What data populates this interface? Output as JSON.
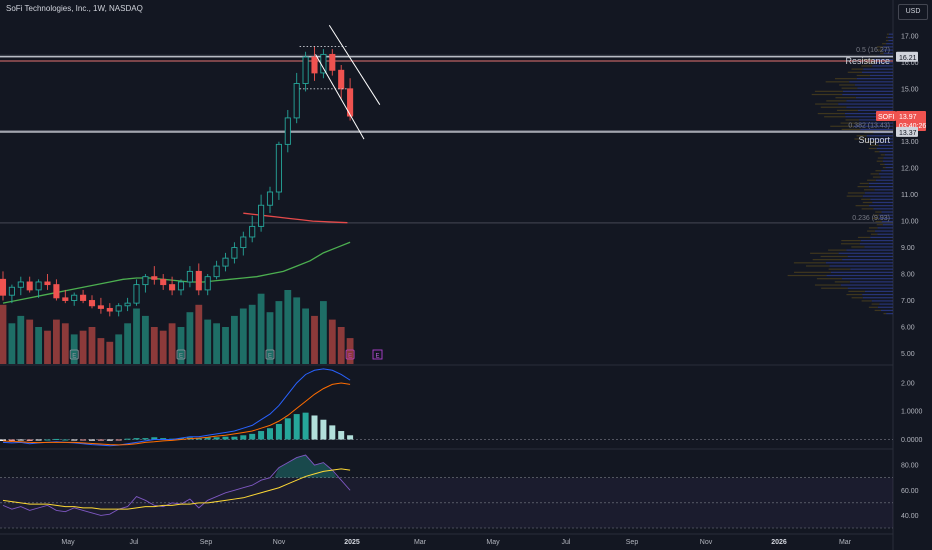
{
  "header": {
    "title": "SoFi Technologies, Inc., 1W, NASDAQ",
    "currency": "USD"
  },
  "colors": {
    "background": "#131722",
    "up": "#26a69a",
    "down": "#ef5350",
    "grid": "#2a2e39",
    "text": "#b2b5be",
    "sma_red": "#e64a4a",
    "sma_green": "#4caf50",
    "macd": "#2962ff",
    "signal": "#ff6d00",
    "rsi": "#7e57c2",
    "rsi_ma": "#fdd835",
    "volprofile_up": "#4a3f1e",
    "volprofile_down": "#2c3a86"
  },
  "chart_data": [
    {
      "type": "candlestick",
      "name": "price",
      "y_ticks": [
        "17.00",
        "16.00",
        "15.00",
        "14.00",
        "13.00",
        "12.00",
        "11.00",
        "10.00",
        "9.00",
        "8.00",
        "7.00",
        "6.00",
        "5.00"
      ],
      "ylim": [
        4.6,
        17.6
      ],
      "x_ticks": [
        "May",
        "Jul",
        "Sep",
        "Nov",
        "2025",
        "Mar",
        "May",
        "Jul",
        "Sep",
        "Nov",
        "2026",
        "Mar"
      ],
      "candles": [
        {
          "o": 7.8,
          "h": 8.1,
          "l": 7.0,
          "c": 7.2
        },
        {
          "o": 7.2,
          "h": 7.6,
          "l": 6.9,
          "c": 7.5
        },
        {
          "o": 7.5,
          "h": 7.9,
          "l": 7.2,
          "c": 7.7
        },
        {
          "o": 7.7,
          "h": 7.9,
          "l": 7.3,
          "c": 7.4
        },
        {
          "o": 7.4,
          "h": 7.8,
          "l": 7.1,
          "c": 7.7
        },
        {
          "o": 7.7,
          "h": 8.0,
          "l": 7.4,
          "c": 7.6
        },
        {
          "o": 7.6,
          "h": 7.8,
          "l": 7.0,
          "c": 7.1
        },
        {
          "o": 7.1,
          "h": 7.4,
          "l": 6.9,
          "c": 7.0
        },
        {
          "o": 7.0,
          "h": 7.3,
          "l": 6.8,
          "c": 7.2
        },
        {
          "o": 7.2,
          "h": 7.4,
          "l": 6.9,
          "c": 7.0
        },
        {
          "o": 7.0,
          "h": 7.2,
          "l": 6.7,
          "c": 6.8
        },
        {
          "o": 6.8,
          "h": 7.1,
          "l": 6.5,
          "c": 6.7
        },
        {
          "o": 6.7,
          "h": 6.9,
          "l": 6.4,
          "c": 6.6
        },
        {
          "o": 6.6,
          "h": 6.9,
          "l": 6.4,
          "c": 6.8
        },
        {
          "o": 6.8,
          "h": 7.1,
          "l": 6.6,
          "c": 6.9
        },
        {
          "o": 6.9,
          "h": 7.8,
          "l": 6.8,
          "c": 7.6
        },
        {
          "o": 7.6,
          "h": 8.0,
          "l": 7.3,
          "c": 7.9
        },
        {
          "o": 7.9,
          "h": 8.3,
          "l": 7.6,
          "c": 7.8
        },
        {
          "o": 7.8,
          "h": 8.0,
          "l": 7.4,
          "c": 7.6
        },
        {
          "o": 7.6,
          "h": 7.9,
          "l": 7.2,
          "c": 7.4
        },
        {
          "o": 7.4,
          "h": 7.8,
          "l": 7.2,
          "c": 7.7
        },
        {
          "o": 7.7,
          "h": 8.3,
          "l": 7.5,
          "c": 8.1
        },
        {
          "o": 8.1,
          "h": 8.4,
          "l": 7.2,
          "c": 7.4
        },
        {
          "o": 7.4,
          "h": 8.0,
          "l": 7.2,
          "c": 7.9
        },
        {
          "o": 7.9,
          "h": 8.5,
          "l": 7.8,
          "c": 8.3
        },
        {
          "o": 8.3,
          "h": 8.8,
          "l": 8.1,
          "c": 8.6
        },
        {
          "o": 8.6,
          "h": 9.2,
          "l": 8.4,
          "c": 9.0
        },
        {
          "o": 9.0,
          "h": 9.6,
          "l": 8.7,
          "c": 9.4
        },
        {
          "o": 9.4,
          "h": 10.2,
          "l": 9.2,
          "c": 9.8
        },
        {
          "o": 9.8,
          "h": 11.0,
          "l": 9.6,
          "c": 10.6
        },
        {
          "o": 10.6,
          "h": 11.3,
          "l": 10.3,
          "c": 11.1
        },
        {
          "o": 11.1,
          "h": 13.0,
          "l": 10.8,
          "c": 12.9
        },
        {
          "o": 12.9,
          "h": 14.2,
          "l": 12.6,
          "c": 13.9
        },
        {
          "o": 13.9,
          "h": 15.6,
          "l": 13.7,
          "c": 15.2
        },
        {
          "o": 15.2,
          "h": 16.4,
          "l": 14.9,
          "c": 16.2
        },
        {
          "o": 16.2,
          "h": 16.6,
          "l": 15.3,
          "c": 15.6
        },
        {
          "o": 15.6,
          "h": 16.5,
          "l": 15.4,
          "c": 16.3
        },
        {
          "o": 16.3,
          "h": 16.5,
          "l": 15.5,
          "c": 15.7
        },
        {
          "o": 15.7,
          "h": 15.9,
          "l": 14.6,
          "c": 15.0
        },
        {
          "o": 15.0,
          "h": 15.4,
          "l": 13.8,
          "c": 13.97
        }
      ],
      "sma_red": [
        10.3,
        10.25,
        10.2,
        10.15,
        10.1,
        10.05,
        10.0,
        9.98,
        9.96,
        9.94
      ],
      "sma_green": [
        6.9,
        7.0,
        7.1,
        7.2,
        7.3,
        7.4,
        7.5,
        7.6,
        7.7,
        7.8,
        7.85,
        7.85,
        7.8,
        7.75,
        7.7,
        7.7,
        7.75,
        7.8,
        7.85,
        7.9,
        8.0,
        8.1,
        8.3,
        8.5,
        8.8,
        9.0,
        9.2
      ],
      "levels": [
        {
          "label": "0.5 (16.27)",
          "value": 16.27
        },
        {
          "label": "0.382 (13.43)",
          "value": 13.43
        },
        {
          "label": "0.236 (9.93)",
          "value": 9.93
        }
      ],
      "horizontal_lines": [
        {
          "name": "Resistance",
          "value": 16.05
        },
        {
          "name": "Support",
          "value": 13.37
        }
      ],
      "price_labels": [
        {
          "text": "16.21",
          "value": 16.21
        },
        {
          "text": "SOFI",
          "value": 13.97
        },
        {
          "text": "13.97",
          "value": 13.97
        },
        {
          "text": "03:40:26",
          "value": 13.7
        },
        {
          "text": "13.37",
          "value": 13.37
        }
      ],
      "volume": [
        0.8,
        0.55,
        0.65,
        0.6,
        0.5,
        0.45,
        0.6,
        0.55,
        0.4,
        0.45,
        0.5,
        0.35,
        0.3,
        0.4,
        0.55,
        0.75,
        0.65,
        0.5,
        0.45,
        0.55,
        0.5,
        0.7,
        0.8,
        0.6,
        0.55,
        0.5,
        0.65,
        0.75,
        0.8,
        0.95,
        0.7,
        0.85,
        1.0,
        0.9,
        0.75,
        0.65,
        0.85,
        0.6,
        0.5,
        0.35
      ],
      "earnings_markers": [
        "E",
        "E",
        "E",
        "E"
      ]
    },
    {
      "type": "line",
      "name": "macd",
      "y_ticks": [
        "2.00",
        "1.0000",
        "0.0000"
      ],
      "ylim": [
        -0.3,
        2.6
      ],
      "macd": [
        -0.1,
        -0.12,
        -0.1,
        -0.15,
        -0.12,
        -0.1,
        -0.08,
        -0.1,
        -0.12,
        -0.15,
        -0.18,
        -0.2,
        -0.22,
        -0.2,
        -0.15,
        -0.1,
        -0.05,
        0.0,
        0.0,
        0.0,
        0.05,
        0.1,
        0.1,
        0.15,
        0.2,
        0.25,
        0.3,
        0.4,
        0.5,
        0.7,
        0.9,
        1.2,
        1.6,
        2.0,
        2.3,
        2.45,
        2.5,
        2.45,
        2.3,
        2.1
      ],
      "signal": [
        -0.05,
        -0.07,
        -0.08,
        -0.1,
        -0.11,
        -0.1,
        -0.1,
        -0.1,
        -0.1,
        -0.12,
        -0.14,
        -0.16,
        -0.18,
        -0.19,
        -0.18,
        -0.15,
        -0.1,
        -0.08,
        -0.05,
        -0.03,
        0.0,
        0.03,
        0.05,
        0.08,
        0.12,
        0.15,
        0.2,
        0.25,
        0.3,
        0.4,
        0.5,
        0.65,
        0.85,
        1.1,
        1.35,
        1.6,
        1.8,
        1.95,
        2.0,
        1.95
      ],
      "histogram": [
        -0.05,
        -0.05,
        -0.02,
        -0.05,
        -0.01,
        0.0,
        0.02,
        0.0,
        -0.02,
        -0.03,
        -0.04,
        -0.04,
        -0.04,
        -0.01,
        0.03,
        0.05,
        0.05,
        0.08,
        0.05,
        0.03,
        0.05,
        0.07,
        0.05,
        0.07,
        0.08,
        0.1,
        0.1,
        0.15,
        0.2,
        0.3,
        0.4,
        0.55,
        0.75,
        0.9,
        0.95,
        0.85,
        0.7,
        0.5,
        0.3,
        0.15
      ]
    },
    {
      "type": "line",
      "name": "rsi",
      "y_ticks": [
        "80.00",
        "60.00",
        "40.00"
      ],
      "ylim": [
        30,
        92
      ],
      "rsi": [
        48,
        45,
        47,
        44,
        46,
        48,
        44,
        43,
        46,
        44,
        42,
        40,
        41,
        45,
        47,
        55,
        52,
        48,
        47,
        50,
        49,
        53,
        46,
        52,
        55,
        58,
        60,
        62,
        64,
        68,
        70,
        78,
        82,
        86,
        88,
        80,
        82,
        76,
        68,
        60
      ],
      "rsi_ma": [
        52,
        51,
        50,
        49,
        49,
        49,
        48,
        47,
        47,
        46,
        46,
        45,
        45,
        45,
        45,
        46,
        47,
        47,
        48,
        48,
        49,
        49,
        50,
        50,
        51,
        52,
        53,
        54,
        56,
        58,
        60,
        62,
        65,
        68,
        71,
        73,
        75,
        76,
        77,
        76
      ],
      "bands": [
        70,
        50,
        30
      ]
    }
  ]
}
